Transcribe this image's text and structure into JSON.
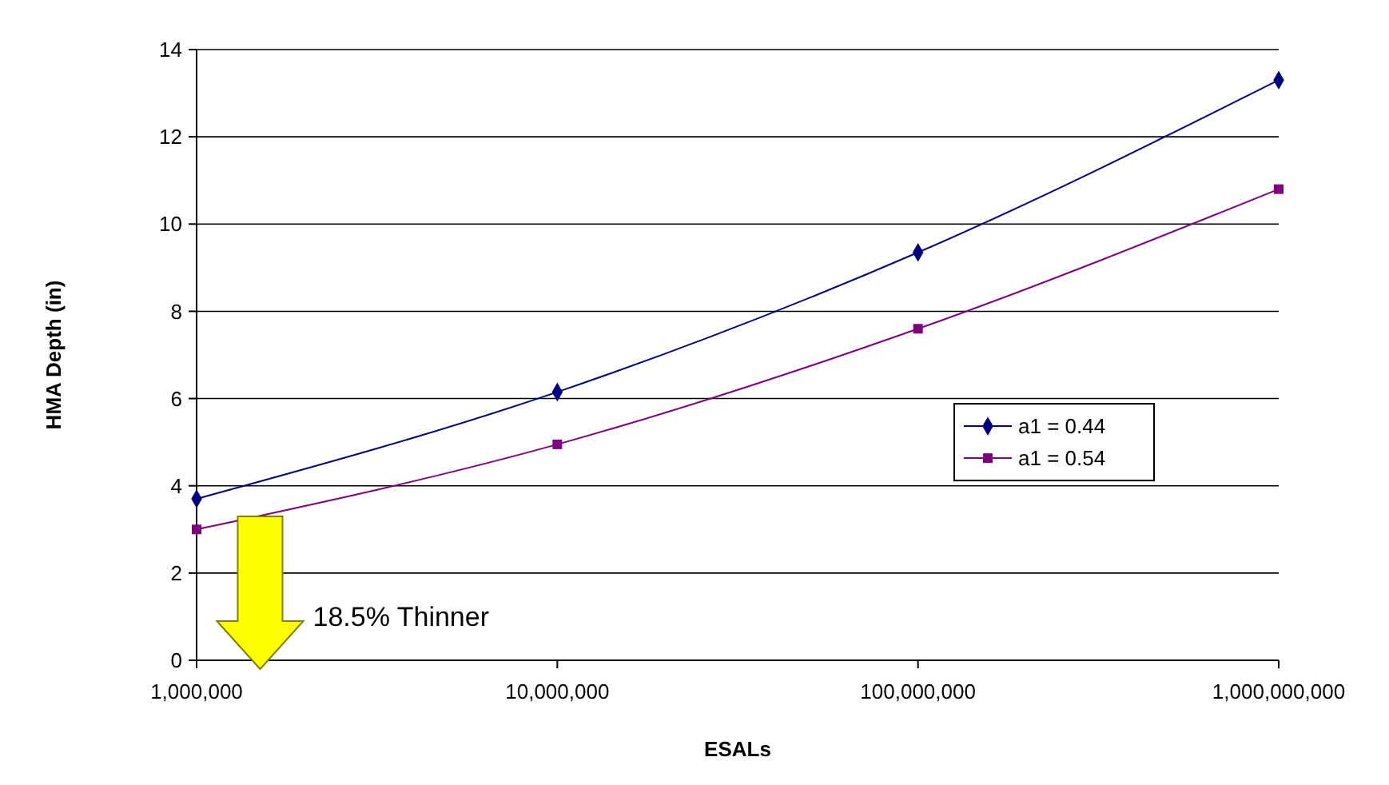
{
  "chart_data": {
    "type": "line",
    "xlabel": "ESALs",
    "ylabel": "HMA Depth (in)",
    "log": "x",
    "x": [
      1000000,
      10000000,
      100000000,
      1000000000
    ],
    "xlim": [
      1000000,
      1000000000
    ],
    "xticks": [
      {
        "value": 1000000,
        "label": "1,000,000"
      },
      {
        "value": 10000000,
        "label": "10,000,000"
      },
      {
        "value": 100000000,
        "label": "100,000,000"
      },
      {
        "value": 1000000000,
        "label": "1,000,000,000"
      }
    ],
    "ylim": [
      0,
      14
    ],
    "yticks": [
      0,
      2,
      4,
      6,
      8,
      10,
      12,
      14
    ],
    "grid": "y",
    "legend": "right",
    "series": [
      {
        "name": "a1 = 0.44",
        "color": "#000080",
        "marker": "diamond",
        "values": [
          3.7,
          6.15,
          9.35,
          13.3
        ]
      },
      {
        "name": "a1 = 0.54",
        "color": "#800080",
        "marker": "square",
        "values": [
          3.0,
          4.95,
          7.6,
          10.8
        ]
      }
    ],
    "annotations": [
      "18.5% Thinner"
    ]
  }
}
